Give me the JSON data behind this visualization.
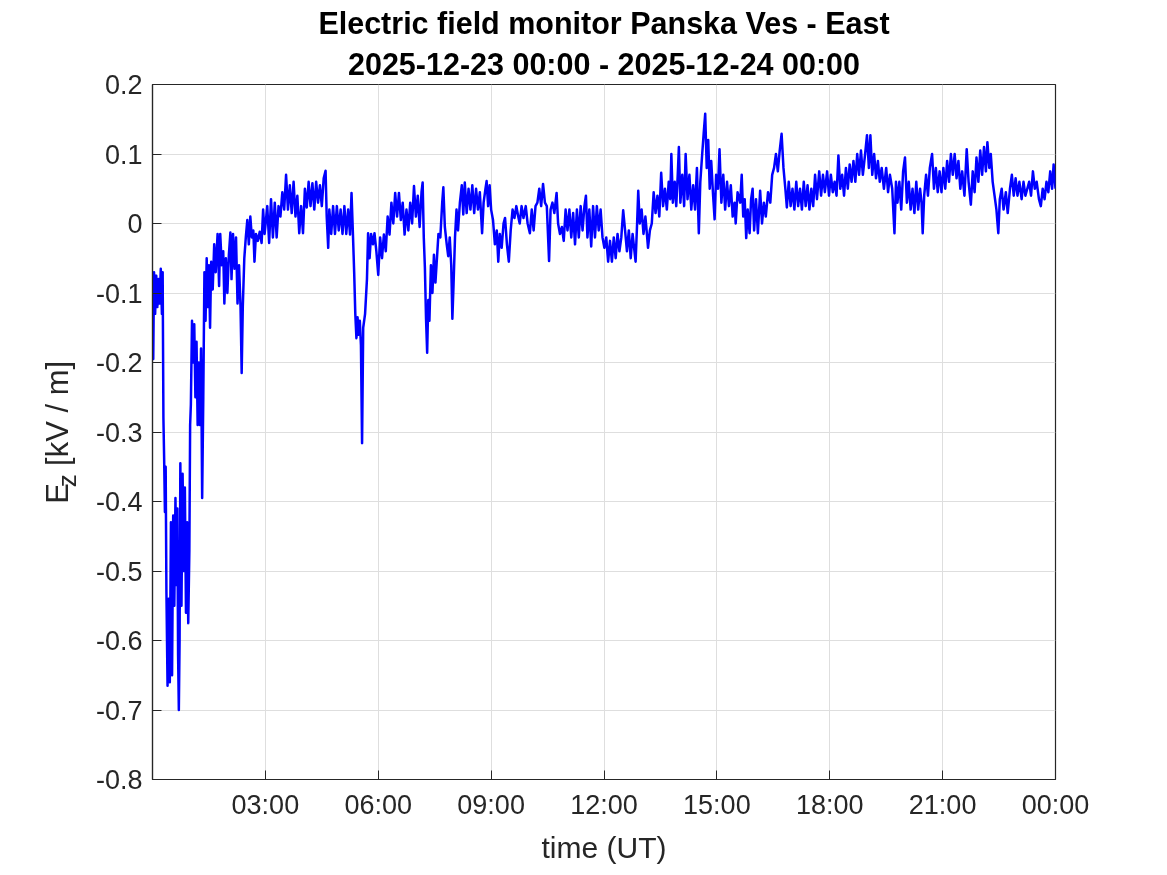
{
  "chart_data": {
    "type": "line",
    "title": "Electric field monitor Panska Ves - East",
    "subtitle": "2025-12-23 00:00 - 2025-12-24 00:00",
    "xlabel": "time (UT)",
    "ylabel": "E$_{z}$ [kV / m]",
    "x": [
      0,
      0.02,
      0.04,
      0.07,
      0.1,
      0.13,
      0.16,
      0.19,
      0.22,
      0.25,
      0.27,
      0.29,
      0.31,
      0.33,
      0.35,
      0.37,
      0.4,
      0.43,
      0.46,
      0.49,
      0.52,
      0.55,
      0.58,
      0.61,
      0.64,
      0.66,
      0.68,
      0.7,
      0.72,
      0.74,
      0.77,
      0.8,
      0.83,
      0.86,
      0.89,
      0.92,
      0.95,
      0.98,
      1,
      1.02,
      1.05,
      1.08,
      1.11,
      1.14,
      1.17,
      1.2,
      1.23,
      1.26,
      1.29,
      1.32,
      1.35,
      1.38,
      1.41,
      1.44,
      1.47,
      1.5,
      1.53,
      1.56,
      1.6,
      1.64,
      1.68,
      1.73,
      1.77,
      1.8,
      1.84,
      1.88,
      1.91,
      1.95,
      1.99,
      2.03,
      2.07,
      2.1,
      2.14,
      2.18,
      2.22,
      2.26,
      2.3,
      2.34,
      2.37,
      2.4,
      2.44,
      2.48,
      2.52,
      2.56,
      2.6,
      2.64,
      2.68,
      2.71,
      2.75,
      2.8,
      2.85,
      2.9,
      2.94,
      2.98,
      3.05,
      3.1,
      3.15,
      3.2,
      3.25,
      3.3,
      3.35,
      3.4,
      3.45,
      3.5,
      3.55,
      3.6,
      3.65,
      3.7,
      3.75,
      3.8,
      3.85,
      3.9,
      3.95,
      4,
      4.05,
      4.1,
      4.15,
      4.2,
      4.25,
      4.3,
      4.35,
      4.4,
      4.45,
      4.5,
      4.55,
      4.6,
      4.63,
      4.67,
      4.7,
      4.75,
      4.8,
      4.85,
      4.9,
      4.95,
      5,
      5.05,
      5.1,
      5.15,
      5.2,
      5.25,
      5.29,
      5.33,
      5.36,
      5.39,
      5.42,
      5.45,
      5.48,
      5.51,
      5.54,
      5.57,
      5.6,
      5.65,
      5.7,
      5.73,
      5.77,
      5.81,
      5.86,
      5.9,
      5.95,
      6,
      6.05,
      6.1,
      6.15,
      6.2,
      6.25,
      6.3,
      6.35,
      6.4,
      6.45,
      6.5,
      6.55,
      6.6,
      6.65,
      6.7,
      6.75,
      6.8,
      6.85,
      6.9,
      6.95,
      7,
      7.05,
      7.1,
      7.15,
      7.18,
      7.21,
      7.24,
      7.27,
      7.3,
      7.33,
      7.36,
      7.4,
      7.44,
      7.48,
      7.52,
      7.56,
      7.6,
      7.65,
      7.7,
      7.73,
      7.77,
      7.82,
      7.86,
      7.9,
      7.94,
      7.97,
      8,
      8.04,
      8.08,
      8.12,
      8.17,
      8.22,
      8.26,
      8.3,
      8.35,
      8.4,
      8.45,
      8.5,
      8.55,
      8.6,
      8.65,
      8.7,
      8.76,
      8.8,
      8.85,
      8.88,
      8.92,
      8.96,
      9,
      9.05,
      9.1,
      9.15,
      9.19,
      9.23,
      9.28,
      9.33,
      9.37,
      9.42,
      9.47,
      9.52,
      9.57,
      9.62,
      9.67,
      9.72,
      9.76,
      9.81,
      9.86,
      9.92,
      9.97,
      10.03,
      10.08,
      10.13,
      10.18,
      10.23,
      10.28,
      10.33,
      10.38,
      10.43,
      10.48,
      10.54,
      10.58,
      10.63,
      10.68,
      10.74,
      10.78,
      10.83,
      10.88,
      10.93,
      10.98,
      11.03,
      11.08,
      11.13,
      11.18,
      11.23,
      11.28,
      11.33,
      11.38,
      11.43,
      11.48,
      11.52,
      11.56,
      11.61,
      11.66,
      11.71,
      11.76,
      11.81,
      11.86,
      11.91,
      11.96,
      12.01,
      12.06,
      12.11,
      12.16,
      12.21,
      12.26,
      12.31,
      12.36,
      12.41,
      12.46,
      12.51,
      12.56,
      12.61,
      12.66,
      12.71,
      12.76,
      12.81,
      12.84,
      12.88,
      12.91,
      12.95,
      13,
      13.05,
      13.1,
      13.14,
      13.17,
      13.22,
      13.27,
      13.32,
      13.37,
      13.42,
      13.47,
      13.52,
      13.57,
      13.62,
      13.67,
      13.72,
      13.76,
      13.79,
      13.83,
      13.88,
      13.92,
      13.96,
      13.99,
      14.03,
      14.08,
      14.13,
      14.17,
      14.22,
      14.27,
      14.32,
      14.37,
      14.42,
      14.47,
      14.52,
      14.56,
      14.61,
      14.65,
      14.69,
      14.73,
      14.77,
      14.81,
      14.85,
      14.9,
      14.94,
      14.98,
      15.03,
      15.07,
      15.12,
      15.17,
      15.22,
      15.27,
      15.32,
      15.37,
      15.42,
      15.47,
      15.5,
      15.55,
      15.62,
      15.66,
      15.7,
      15.74,
      15.78,
      15.82,
      15.87,
      15.91,
      15.95,
      15.99,
      16.04,
      16.09,
      16.15,
      16.2,
      16.25,
      16.3,
      16.36,
      16.42,
      16.47,
      16.52,
      16.57,
      16.62,
      16.67,
      16.72,
      16.77,
      16.82,
      16.86,
      16.91,
      16.96,
      17.01,
      17.06,
      17.11,
      17.16,
      17.21,
      17.26,
      17.31,
      17.36,
      17.41,
      17.46,
      17.51,
      17.56,
      17.61,
      17.66,
      17.72,
      17.77,
      17.82,
      17.87,
      17.93,
      17.98,
      18.03,
      18.08,
      18.13,
      18.18,
      18.23,
      18.28,
      18.33,
      18.38,
      18.43,
      18.48,
      18.53,
      18.58,
      18.63,
      18.68,
      18.73,
      18.78,
      18.83,
      18.88,
      18.94,
      18.99,
      19.04,
      19.08,
      19.13,
      19.18,
      19.23,
      19.28,
      19.33,
      19.38,
      19.44,
      19.5,
      19.55,
      19.6,
      19.66,
      19.72,
      19.76,
      19.8,
      19.85,
      19.9,
      19.95,
      20,
      20.05,
      20.1,
      20.15,
      20.2,
      20.25,
      20.3,
      20.35,
      20.4,
      20.44,
      20.47,
      20.51,
      20.56,
      20.61,
      20.66,
      20.72,
      20.77,
      20.82,
      20.87,
      20.92,
      20.97,
      21.02,
      21.07,
      21.12,
      21.17,
      21.22,
      21.27,
      21.32,
      21.37,
      21.42,
      21.47,
      21.52,
      21.58,
      21.64,
      21.69,
      21.75,
      21.8,
      21.85,
      21.9,
      21.95,
      22,
      22.05,
      22.1,
      22.15,
      22.19,
      22.24,
      22.28,
      22.33,
      22.38,
      22.43,
      22.48,
      22.52,
      22.57,
      22.62,
      22.68,
      22.73,
      22.79,
      22.84,
      22.89,
      22.94,
      22.99,
      23.04,
      23.1,
      23.15,
      23.2,
      23.25,
      23.3,
      23.35,
      23.4,
      23.45,
      23.5,
      23.56,
      23.61,
      23.66,
      23.71,
      23.76,
      23.81,
      23.86,
      23.91,
      23.95,
      24
    ],
    "series": [
      {
        "color": "#0000ff",
        "values": [
          -0.17,
          -0.195,
          -0.07,
          -0.13,
          -0.075,
          -0.12,
          -0.08,
          -0.115,
          -0.065,
          -0.13,
          -0.07,
          -0.28,
          -0.34,
          -0.415,
          -0.35,
          -0.53,
          -0.665,
          -0.54,
          -0.66,
          -0.43,
          -0.65,
          -0.42,
          -0.55,
          -0.395,
          -0.52,
          -0.41,
          -0.62,
          -0.7,
          -0.6,
          -0.345,
          -0.55,
          -0.36,
          -0.5,
          -0.38,
          -0.56,
          -0.43,
          -0.575,
          -0.47,
          -0.29,
          -0.26,
          -0.14,
          -0.2,
          -0.145,
          -0.25,
          -0.17,
          -0.29,
          -0.2,
          -0.29,
          -0.18,
          -0.395,
          -0.25,
          -0.07,
          -0.14,
          -0.05,
          -0.12,
          -0.06,
          -0.15,
          -0.055,
          -0.095,
          -0.03,
          -0.07,
          -0.015,
          -0.09,
          -0.015,
          -0.06,
          -0.04,
          -0.115,
          -0.05,
          -0.1,
          -0.045,
          -0.013,
          -0.08,
          -0.015,
          -0.065,
          -0.02,
          -0.115,
          -0.06,
          -0.12,
          -0.215,
          -0.12,
          -0.05,
          -0.02,
          0.005,
          -0.03,
          0.01,
          -0.02,
          -0.01,
          -0.055,
          -0.015,
          -0.025,
          -0.012,
          -0.028,
          0.02,
          -0.015,
          0.025,
          -0.028,
          0.035,
          -0.02,
          0.03,
          -0.02,
          0.025,
          0.01,
          0.045,
          0.02,
          0.07,
          0.02,
          0.055,
          0.015,
          0.06,
          0.01,
          0.04,
          -0.014,
          0.025,
          -0.014,
          0.05,
          0.023,
          0.06,
          0.025,
          0.058,
          0.02,
          0.06,
          0.03,
          0.055,
          0.025,
          0.065,
          0.076,
          0.01,
          -0.035,
          0.02,
          -0.015,
          0.025,
          -0.015,
          0.025,
          -0.01,
          0.02,
          -0.015,
          0.025,
          -0.015,
          0.02,
          -0.016,
          0.044,
          -0.02,
          -0.07,
          -0.13,
          -0.165,
          -0.135,
          -0.16,
          -0.14,
          -0.175,
          -0.316,
          -0.15,
          -0.13,
          -0.08,
          -0.014,
          -0.05,
          -0.015,
          -0.03,
          -0.014,
          -0.04,
          -0.074,
          -0.02,
          -0.05,
          -0.016,
          -0.04,
          0.01,
          -0.016,
          0.03,
          0,
          0.044,
          0.01,
          0.044,
          0.005,
          0.03,
          -0.016,
          0.02,
          -0.01,
          0.03,
          0,
          0.054,
          0.01,
          0.04,
          -0.005,
          0.045,
          0.059,
          -0.02,
          -0.064,
          -0.137,
          -0.186,
          -0.11,
          -0.14,
          -0.06,
          -0.1,
          -0.045,
          -0.085,
          -0.05,
          -0.015,
          -0.02,
          0.03,
          0.052,
          -0.005,
          -0.03,
          -0.047,
          -0.02,
          -0.06,
          -0.137,
          -0.09,
          -0.02,
          0.02,
          -0.01,
          0.03,
          0.055,
          0.013,
          0.059,
          0.015,
          0.05,
          0.02,
          0.055,
          0.015,
          0.05,
          0.02,
          0.045,
          -0.014,
          0.03,
          0.05,
          0.061,
          0.025,
          0.055,
          0.02,
          0.005,
          -0.03,
          -0.01,
          -0.055,
          -0.015,
          -0.035,
          0,
          0.008,
          -0.03,
          -0.055,
          -0.01,
          0.02,
          0.008,
          0.025,
          0.01,
          0,
          0.025,
          0.008,
          0.025,
          0,
          -0.014,
          0.02,
          -0.01,
          0.025,
          0.03,
          0.05,
          0.025,
          0.057,
          0.03,
          0.025,
          -0.054,
          0.02,
          0.03,
          0.015,
          0.044,
          0,
          -0.015,
          -0.005,
          -0.025,
          0.02,
          -0.01,
          0.02,
          -0.02,
          0.015,
          -0.03,
          0.02,
          -0.02,
          0.025,
          -0.01,
          0.025,
          0.04,
          -0.02,
          0.02,
          -0.033,
          0.025,
          -0.02,
          0.025,
          -0.01,
          0.02,
          -0.02,
          -0.035,
          -0.02,
          -0.055,
          -0.025,
          -0.055,
          -0.02,
          -0.05,
          -0.015,
          -0.04,
          -0.02,
          0.019,
          -0.01,
          -0.04,
          -0.01,
          -0.05,
          -0.015,
          -0.04,
          -0.055,
          0,
          0.047,
          0,
          0.02,
          -0.015,
          0.01,
          -0.015,
          -0.035,
          -0.01,
          0,
          0.045,
          0.015,
          0.04,
          0.01,
          0.073,
          0.025,
          0.05,
          0.02,
          0.06,
          0.035,
          0.1,
          0.03,
          0.06,
          0.025,
          0.07,
          0.11,
          0.03,
          0.07,
          0.025,
          0.1,
          0.035,
          0.07,
          0.02,
          0.055,
          0.02,
          0.08,
          -0.014,
          0.06,
          0.1,
          0.13,
          0.158,
          0.08,
          0.12,
          0.05,
          0.09,
          0.04,
          0.006,
          0.07,
          0.05,
          0.107,
          0.03,
          0.07,
          0.02,
          0.06,
          0.025,
          0.055,
          0.01,
          0.03,
          0,
          0.045,
          0.03,
          0.07,
          0.01,
          0.035,
          -0.021,
          0.02,
          -0.014,
          0.035,
          0.05,
          -0.01,
          0.035,
          -0.014,
          0.047,
          0,
          0.03,
          0.01,
          0.045,
          0.03,
          0.07,
          0.08,
          0.1,
          0.075,
          0.105,
          0.129,
          0.08,
          0.05,
          0.023,
          0.06,
          0.025,
          0.05,
          0.02,
          0.06,
          0.025,
          0.05,
          0.02,
          0.06,
          0.025,
          0.055,
          0.02,
          0.05,
          0.025,
          0.07,
          0.035,
          0.075,
          0.04,
          0.07,
          0.045,
          0.075,
          0.04,
          0.07,
          0.045,
          0.06,
          0.04,
          0.098,
          0.05,
          0.07,
          0.04,
          0.08,
          0.05,
          0.085,
          0.06,
          0.09,
          0.06,
          0.1,
          0.07,
          0.105,
          0.07,
          0.1,
          0.127,
          0.08,
          0.127,
          0.07,
          0.1,
          0.065,
          0.09,
          0.06,
          0.08,
          0.05,
          0.08,
          0.045,
          0.07,
          0.05,
          -0.014,
          0.06,
          0.03,
          0.06,
          0.02,
          0.075,
          0.095,
          0.03,
          0.06,
          0.02,
          0.05,
          0.015,
          0.06,
          0.02,
          0.05,
          0.03,
          -0.014,
          0.04,
          0.07,
          0.04,
          0.08,
          0.1,
          0.05,
          0.08,
          0.045,
          0.075,
          0.045,
          0.08,
          0.05,
          0.09,
          0.06,
          0.1,
          0.07,
          0.1,
          0.065,
          0.09,
          0.05,
          0.075,
          0.04,
          0.107,
          0.06,
          0.027,
          0.075,
          0.045,
          0.095,
          0.06,
          0.105,
          0.07,
          0.11,
          0.075,
          0.117,
          0.08,
          0.1,
          0.06,
          0.04,
          0.02,
          -0.014,
          0.035,
          0.05,
          0.02,
          0.045,
          0.015,
          0.05,
          0.07,
          0.04,
          0.065,
          0.04,
          0.06,
          0.035,
          0.06,
          0.04,
          0.05,
          0.06,
          0.04,
          0.075,
          0.05,
          0.06,
          0.035,
          0.025,
          0.05,
          0.035,
          0.06,
          0.045,
          0.075,
          0.05,
          0.085,
          0.05
        ]
      }
    ],
    "xlim": [
      0,
      24
    ],
    "ylim": [
      -0.8,
      0.2
    ],
    "xticks": [
      {
        "value": 3,
        "label": "03:00"
      },
      {
        "value": 6,
        "label": "06:00"
      },
      {
        "value": 9,
        "label": "09:00"
      },
      {
        "value": 12,
        "label": "12:00"
      },
      {
        "value": 15,
        "label": "15:00"
      },
      {
        "value": 18,
        "label": "18:00"
      },
      {
        "value": 21,
        "label": "21:00"
      },
      {
        "value": 24,
        "label": "00:00"
      }
    ],
    "yticks": [
      -0.8,
      -0.7,
      -0.6,
      -0.5,
      -0.4,
      -0.3,
      -0.2,
      -0.1,
      0,
      0.1,
      0.2
    ],
    "grid": true,
    "line_style": "solid"
  }
}
